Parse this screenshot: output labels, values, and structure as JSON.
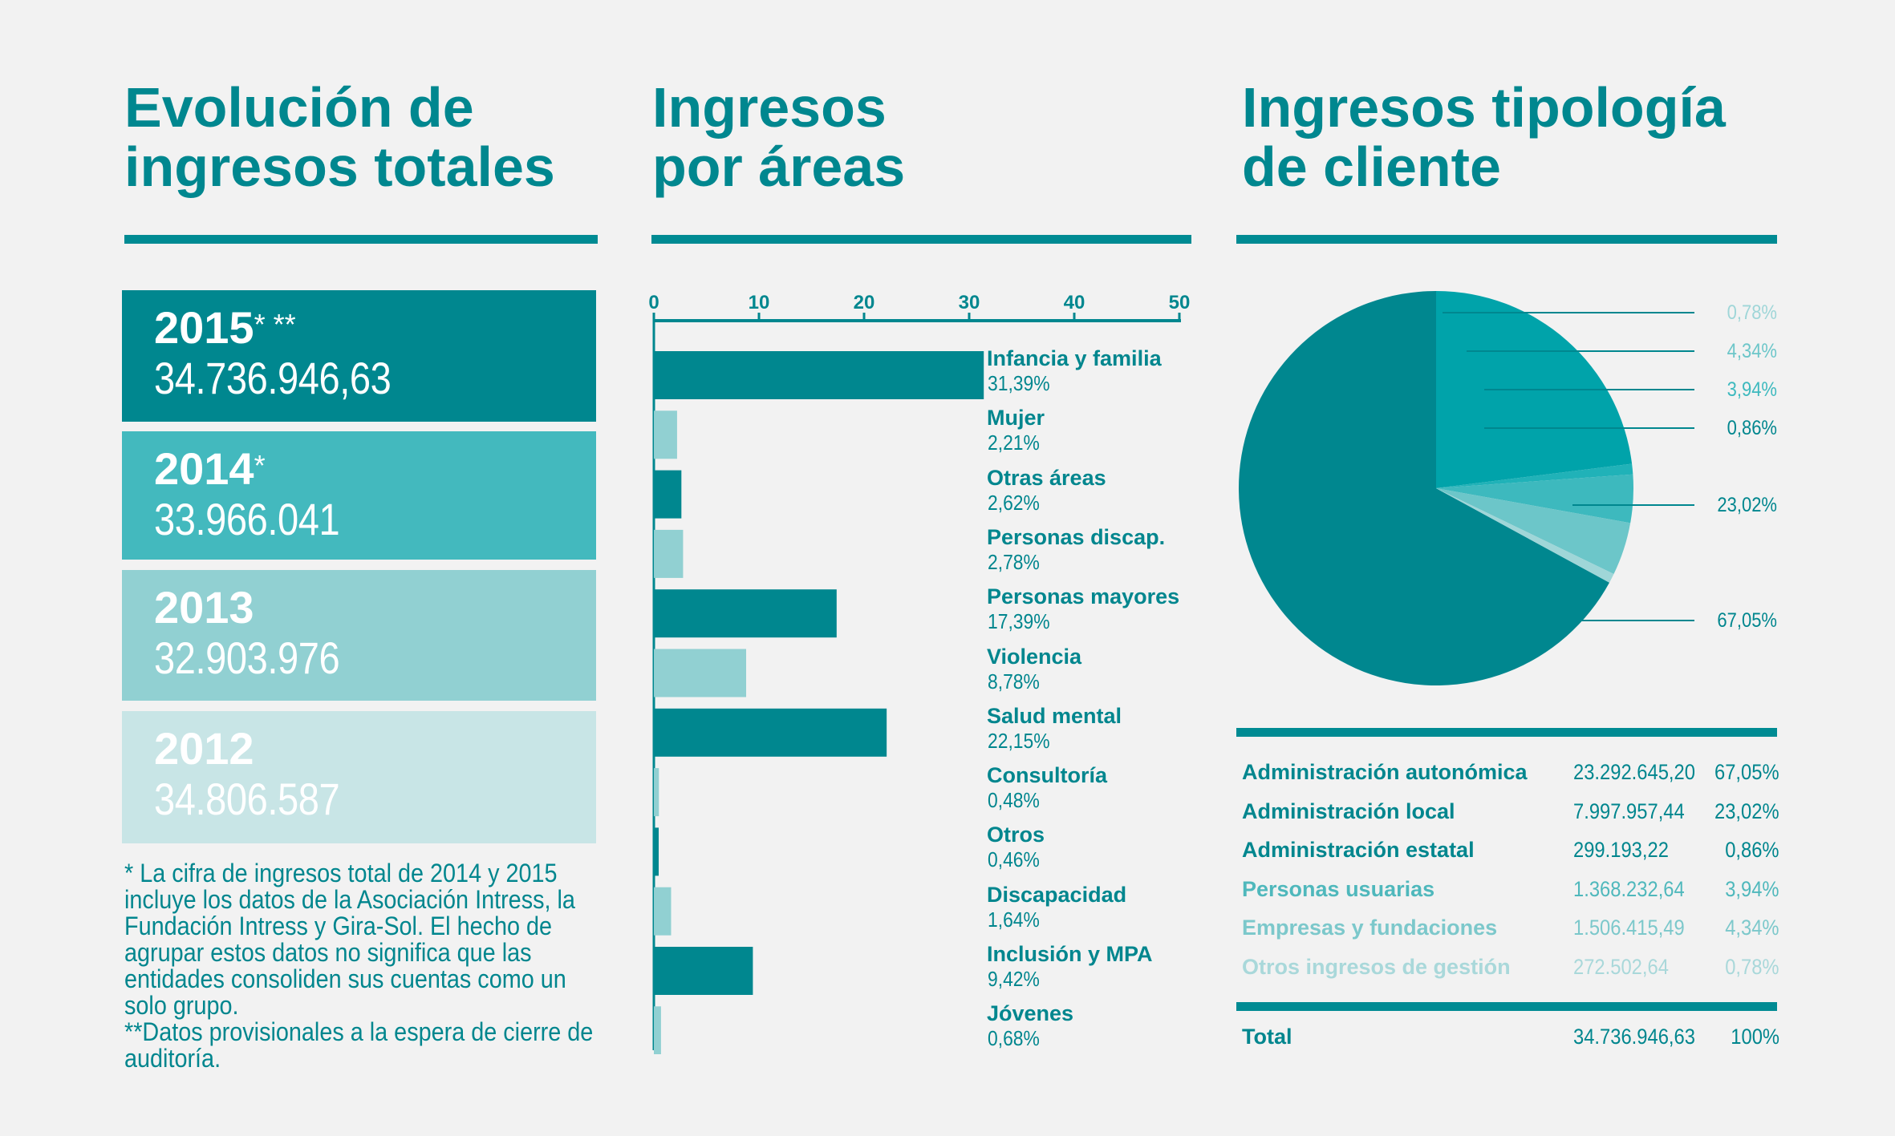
{
  "col1": {
    "title_line1": "Evolución de",
    "title_line2": "ingresos totales",
    "years": [
      {
        "year": "2015",
        "mark": "* **",
        "amount": "34.736.946,63",
        "color": "#00878f"
      },
      {
        "year": "2014",
        "mark": "*",
        "amount": "33.966.041",
        "color": "#43b9be"
      },
      {
        "year": "2013",
        "mark": "",
        "amount": "32.903.976",
        "color": "#91d0d2"
      },
      {
        "year": "2012",
        "mark": "",
        "amount": "34.806.587",
        "color": "#c8e5e6"
      }
    ],
    "footnote1": "* La cifra de ingresos total de 2014 y 2015 incluye los datos de la Asociación Intress, la Fundación Intress y Gira-Sol. El hecho de agrupar estos datos no significa que las entidades consoliden sus cuentas como un solo grupo.",
    "footnote2": "**Datos provisionales a la espera de cierre de auditoría."
  },
  "col2": {
    "title_line1": "Ingresos",
    "title_line2": "por áreas"
  },
  "chart_data": [
    {
      "type": "bar",
      "orientation": "horizontal",
      "title": "Ingresos por áreas",
      "xlim": [
        0,
        50
      ],
      "xticks": [
        "0",
        "10",
        "20",
        "30",
        "40",
        "50"
      ],
      "categories": [
        "Infancia y familia",
        "Mujer",
        "Otras áreas",
        "Personas discap.",
        "Personas mayores",
        "Violencia",
        "Salud mental",
        "Consultoría",
        "Otros",
        "Discapacidad",
        "Inclusión y MPA",
        "Jóvenes"
      ],
      "values": [
        31.39,
        2.21,
        2.62,
        2.78,
        17.39,
        8.78,
        22.15,
        0.48,
        0.46,
        1.64,
        9.42,
        0.68
      ],
      "value_labels": [
        "31,39%",
        "2,21%",
        "2,62%",
        "2,78%",
        "17,39%",
        "8,78%",
        "22,15%",
        "0,48%",
        "0,46%",
        "1,64%",
        "9,42%",
        "0,68%"
      ],
      "colors": [
        "#00878f",
        "#91d0d2",
        "#00878f",
        "#91d0d2",
        "#00878f",
        "#91d0d2",
        "#00878f",
        "#91d0d2",
        "#00878f",
        "#91d0d2",
        "#00878f",
        "#91d0d2"
      ]
    },
    {
      "type": "pie",
      "title": "Ingresos tipología de cliente",
      "categories": [
        "Administración autonómica",
        "Administración local",
        "Administración estatal",
        "Personas usuarias",
        "Empresas y fundaciones",
        "Otros ingresos de gestión"
      ],
      "values": [
        67.05,
        23.02,
        0.86,
        3.94,
        4.34,
        0.78
      ],
      "value_labels": [
        "67,05%",
        "23,02%",
        "0,86%",
        "3,94%",
        "4,34%",
        "0,78%"
      ],
      "colors": [
        "#00878f",
        "#00a3aa",
        "#20b2b8",
        "#3db9be",
        "#6cc6c9",
        "#9fd6d8"
      ]
    }
  ],
  "col3": {
    "title_line1": "Ingresos tipología",
    "title_line2": "de cliente",
    "rows": [
      {
        "name": "Administración autonómica",
        "amount": "23.292.645,20",
        "pct": "67,05%",
        "color": "#00868e"
      },
      {
        "name": "Administración local",
        "amount": "7.997.957,44",
        "pct": "23,02%",
        "color": "#00868e"
      },
      {
        "name": "Administración estatal",
        "amount": "299.193,22",
        "pct": "0,86%",
        "color": "#00868e"
      },
      {
        "name": "Personas usuarias",
        "amount": "1.368.232,64",
        "pct": "3,94%",
        "color": "#4fb8bc"
      },
      {
        "name": "Empresas y fundaciones",
        "amount": "1.506.415,49",
        "pct": "4,34%",
        "color": "#7cc8cb"
      },
      {
        "name": "Otros ingresos de gestión",
        "amount": "272.502,64",
        "pct": "0,78%",
        "color": "#a9d8da"
      }
    ],
    "total": {
      "name": "Total",
      "amount": "34.736.946,63",
      "pct": "100%",
      "color": "#00868e"
    }
  }
}
